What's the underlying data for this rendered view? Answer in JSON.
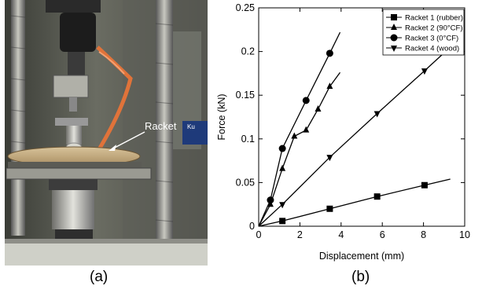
{
  "panel_a": {
    "caption": "(a)",
    "annotation": "Racket",
    "sign_text": "Ku"
  },
  "panel_b": {
    "caption": "(b)"
  },
  "chart_data": {
    "type": "line",
    "xlabel": "Displacement (mm)",
    "ylabel": "Force (kN)",
    "xlim": [
      0,
      10
    ],
    "ylim": [
      0,
      0.25
    ],
    "xticks": [
      "0",
      "2",
      "4",
      "6",
      "8",
      "10"
    ],
    "yticks": [
      "0",
      "0.05",
      "0.1",
      "0.15",
      "0.2",
      "0.25"
    ],
    "grid": false,
    "legend_position": "top-right",
    "series": [
      {
        "name": "Racket 1 (rubber)",
        "marker": "square",
        "points": [
          [
            0,
            0
          ],
          [
            1.15,
            0.006
          ],
          [
            3.45,
            0.02
          ],
          [
            5.75,
            0.034
          ],
          [
            8.05,
            0.047
          ]
        ],
        "line_end": [
          9.3,
          0.054
        ]
      },
      {
        "name": "Racket 2 (90°CF)",
        "marker": "triangle-up",
        "points": [
          [
            0,
            0
          ],
          [
            0.57,
            0.025
          ],
          [
            1.15,
            0.066
          ],
          [
            1.73,
            0.103
          ],
          [
            2.3,
            0.11
          ],
          [
            2.88,
            0.134
          ],
          [
            3.45,
            0.16
          ]
        ],
        "line_end": [
          3.95,
          0.176
        ]
      },
      {
        "name": "Racket 3 (0°CF)",
        "marker": "circle",
        "points": [
          [
            0,
            0
          ],
          [
            0.57,
            0.03
          ],
          [
            1.15,
            0.089
          ],
          [
            2.3,
            0.144
          ],
          [
            3.45,
            0.198
          ]
        ],
        "line_end": [
          3.95,
          0.222
        ]
      },
      {
        "name": "Racket 4 (wood)",
        "marker": "triangle-down",
        "points": [
          [
            0,
            0
          ],
          [
            1.15,
            0.025
          ],
          [
            3.45,
            0.079
          ],
          [
            5.75,
            0.129
          ],
          [
            8.05,
            0.178
          ]
        ],
        "line_end": [
          9.3,
          0.205
        ]
      }
    ]
  }
}
